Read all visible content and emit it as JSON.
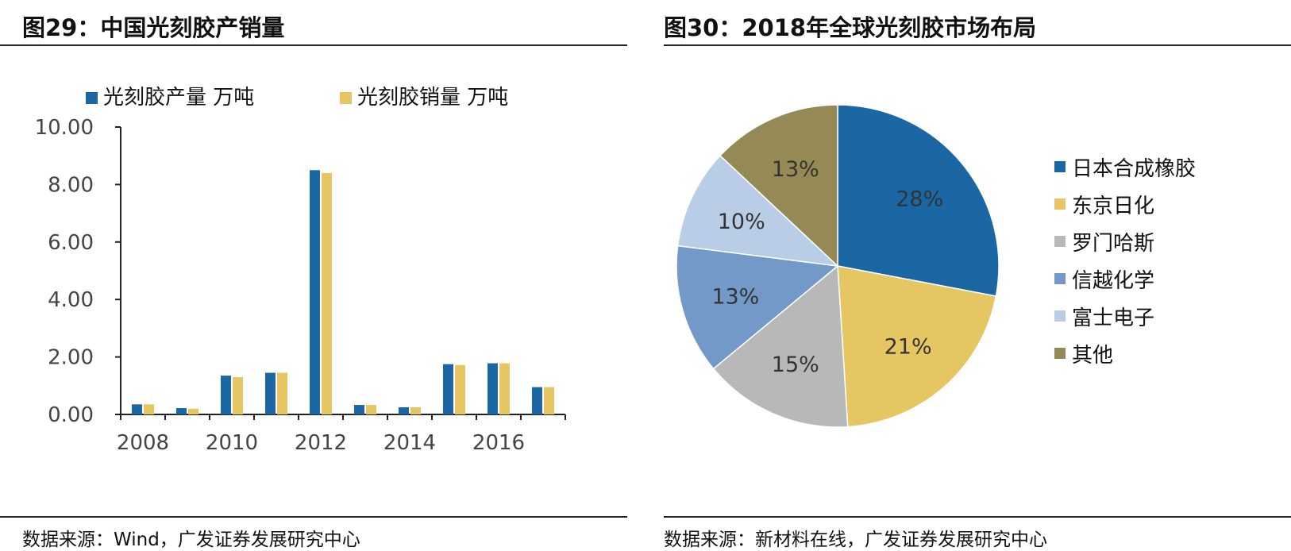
{
  "left_panel": {
    "title": "图29：中国光刻胶产销量",
    "source": "数据来源：Wind，广发证券发展研究中心"
  },
  "right_panel": {
    "title": "图30：2018年全球光刻胶市场布局",
    "source": "数据来源：新材料在线，广发证券发展研究中心"
  },
  "chart_data": [
    {
      "type": "bar",
      "title": "图29：中国光刻胶产销量",
      "categories": [
        "2008",
        "2009",
        "2010",
        "2011",
        "2012",
        "2013",
        "2014",
        "2015",
        "2016",
        "2017"
      ],
      "x_tick_labels": [
        "2008",
        "2010",
        "2012",
        "2014",
        "2016"
      ],
      "y_tick_labels": [
        "0.00",
        "2.00",
        "4.00",
        "6.00",
        "8.00",
        "10.00"
      ],
      "ylim": [
        0,
        10
      ],
      "legend_position": "top",
      "grid": false,
      "series": [
        {
          "name": "光刻胶产量 万吨",
          "color": "#1a67a3",
          "values": [
            0.35,
            0.22,
            1.35,
            1.45,
            8.5,
            0.33,
            0.25,
            1.75,
            1.78,
            0.95
          ]
        },
        {
          "name": "光刻胶销量 万吨",
          "color": "#e5c662",
          "values": [
            0.35,
            0.2,
            1.3,
            1.45,
            8.4,
            0.33,
            0.25,
            1.72,
            1.78,
            0.95
          ]
        }
      ]
    },
    {
      "type": "pie",
      "title": "图30：2018年全球光刻胶市场布局",
      "legend_position": "right",
      "slices": [
        {
          "label": "日本合成橡胶",
          "value": 28,
          "text": "28%",
          "color": "#1a67a3"
        },
        {
          "label": "东京日化",
          "value": 21,
          "text": "21%",
          "color": "#e5c662"
        },
        {
          "label": "罗门哈斯",
          "value": 15,
          "text": "15%",
          "color": "#b8b8b8"
        },
        {
          "label": "信越化学",
          "value": 13,
          "text": "13%",
          "color": "#7399c8"
        },
        {
          "label": "富士电子",
          "value": 10,
          "text": "10%",
          "color": "#b9cde6"
        },
        {
          "label": "其他",
          "value": 13,
          "text": "13%",
          "color": "#958a55"
        }
      ]
    }
  ]
}
